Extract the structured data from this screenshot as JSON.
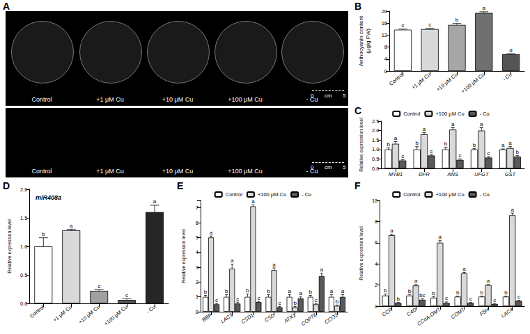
{
  "photo_panel": {
    "panel_label": "A",
    "rows": [
      {
        "labels": [
          "Control",
          "+1 μM Cu",
          "+10 μM Cu",
          "+100 μM Cu",
          "- Cu"
        ],
        "scale_bar": [
          "0",
          "cm",
          "5"
        ]
      },
      {
        "labels": [
          "Control",
          "+1 μM Cu",
          "+10 μM Cu",
          "+100 μM Cu",
          "- Cu"
        ],
        "scale_bar": [
          "0",
          "cm",
          "5"
        ]
      }
    ]
  },
  "chart_data": [
    {
      "type": "bar",
      "panel_label": "B",
      "y_label": "Anthocyanin content\n(μg/g FW)",
      "categories": [
        "Control",
        "+1 μM Cu",
        "+10 μM Cu",
        "+100 μM Cu",
        "- Cu"
      ],
      "values": [
        13.8,
        14.0,
        15.4,
        19.4,
        5.6
      ],
      "errors": [
        0.2,
        0.3,
        0.5,
        0.4,
        0.2
      ],
      "annotations": [
        "c",
        "c",
        "b",
        "a",
        "d"
      ],
      "colors": [
        "#ffffff",
        "#d9d9d9",
        "#a6a6a6",
        "#707070",
        "#555555"
      ],
      "ylim": [
        0,
        20
      ],
      "yticks": [
        0,
        4,
        8,
        12,
        16,
        20
      ],
      "grid": false
    },
    {
      "type": "bar",
      "panel_label": "C",
      "y_label": "Relative expression level",
      "categories": [
        "MYB1",
        "DFR",
        "ANS",
        "UFGT",
        "GST"
      ],
      "series": [
        {
          "name": "Control",
          "color": "#ffffff",
          "values": [
            1.0,
            1.0,
            1.0,
            1.0,
            1.0
          ],
          "errors": [
            0.08,
            0.15,
            0.12,
            0.04,
            0.03
          ],
          "annotations": [
            "b",
            "b",
            "b",
            "b",
            "a"
          ]
        },
        {
          "name": "+100 μM Cu",
          "color": "#d9d9d9",
          "values": [
            1.3,
            1.8,
            2.05,
            2.0,
            1.07
          ],
          "errors": [
            0.12,
            0.1,
            0.1,
            0.15,
            0.08
          ],
          "annotations": [
            "a",
            "a",
            "a",
            "a",
            "a"
          ]
        },
        {
          "name": "- Cu",
          "color": "#595959",
          "values": [
            0.42,
            0.68,
            0.45,
            0.57,
            0.62
          ],
          "errors": [
            0.05,
            0.05,
            0.05,
            0.05,
            0.05
          ],
          "annotations": [
            "c",
            "c",
            "c",
            "c",
            "b"
          ]
        }
      ],
      "ylim": [
        0,
        2.5
      ],
      "yticks": [
        {
          "value": 0,
          "label": "0.0"
        },
        0.5,
        {
          "value": 1,
          "label": "1.0"
        },
        1.5,
        {
          "value": 2,
          "label": "2.0"
        },
        2.5
      ],
      "legend": "top",
      "grid": false
    },
    {
      "type": "bar",
      "panel_label": "D",
      "title": "miR408a",
      "y_label": "Relative expression level",
      "categories": [
        "Control",
        "+1 μM Cu",
        "+10 μM Cu",
        "+100 μM Cu",
        "- Cu"
      ],
      "values": [
        1.0,
        1.28,
        0.22,
        0.06,
        1.6
      ],
      "errors": [
        0.15,
        0.02,
        0.02,
        0.02,
        0.12
      ],
      "annotations": [
        "b",
        "a",
        "c",
        "c",
        "a"
      ],
      "colors": [
        "#ffffff",
        "#d9d9d9",
        "#a0a0a0",
        "#595959",
        "#262626"
      ],
      "ylim": [
        0,
        2
      ],
      "yticks": [
        {
          "value": 0,
          "label": "0.0"
        },
        0.5,
        {
          "value": 1,
          "label": "1.0"
        },
        1.5,
        {
          "value": 2,
          "label": "2.0"
        }
      ],
      "grid": false
    },
    {
      "type": "bar",
      "panel_label": "E",
      "y_label": "Relative expression level",
      "categories": [
        "BBP",
        "LAC3",
        "CSD1",
        "CSD",
        "ATX1",
        "COPT6",
        "CCO2"
      ],
      "series": [
        {
          "name": "Control",
          "color": "#ffffff",
          "values": [
            1.0,
            1.0,
            1.0,
            1.0,
            1.0,
            1.0,
            1.0
          ],
          "errors": [
            0.1,
            0.15,
            0.2,
            0.15,
            0.15,
            0.1,
            0.15
          ],
          "annotations": [
            "b",
            "b",
            "b",
            "b",
            "a",
            "b",
            "a"
          ]
        },
        {
          "name": "+100 μM Cu",
          "color": "#d9d9d9",
          "values": [
            5.0,
            2.9,
            7.1,
            2.8,
            0.3,
            0.5,
            0.4
          ],
          "errors": [
            0.1,
            0.3,
            0.1,
            0.15,
            0.05,
            0.05,
            0.05
          ],
          "annotations": [
            "a",
            "a",
            "a",
            "a",
            "b",
            "c",
            "b"
          ]
        },
        {
          "name": "- Cu",
          "color": "#595959",
          "values": [
            0.5,
            0.55,
            0.65,
            0.3,
            0.9,
            2.4,
            1.0
          ],
          "errors": [
            0.05,
            0.1,
            0.05,
            0.05,
            0.1,
            0.2,
            0.15
          ],
          "annotations": [
            "c",
            "c",
            "c",
            "c",
            "a",
            "a",
            "a"
          ]
        }
      ],
      "ylim": [
        0,
        7.5
      ],
      "yticks": [
        0,
        1,
        2,
        3,
        4,
        5,
        6,
        7
      ],
      "legend": "top",
      "grid": false
    },
    {
      "type": "bar",
      "panel_label": "F",
      "y_label": "Relative expression level",
      "categories": [
        "CCR",
        "C4D",
        "CCoA-OMT",
        "COMT",
        "F5H",
        "LAC4"
      ],
      "series": [
        {
          "name": "Control",
          "color": "#ffffff",
          "values": [
            1.0,
            1.0,
            0.8,
            0.9,
            0.9,
            0.9
          ],
          "errors": [
            0.15,
            0.1,
            0.1,
            0.05,
            0.05,
            0.05
          ],
          "annotations": [
            "b",
            "b",
            "b",
            "b",
            "b",
            "b"
          ]
        },
        {
          "name": "+100 μM Cu",
          "color": "#d9d9d9",
          "values": [
            6.7,
            1.95,
            6.0,
            3.1,
            2.0,
            8.6
          ],
          "errors": [
            0.1,
            0.1,
            0.2,
            0.1,
            0.05,
            0.2
          ],
          "annotations": [
            "a",
            "a",
            "a",
            "a",
            "a",
            "a"
          ]
        },
        {
          "name": "- Cu",
          "color": "#595959",
          "values": [
            0.3,
            0.6,
            0.3,
            0.3,
            0.2,
            0.5
          ],
          "errors": [
            0.05,
            0.1,
            0.1,
            0.05,
            0.05,
            0.05
          ],
          "annotations": [
            "b",
            "bc",
            "c",
            "c",
            "c",
            "c"
          ]
        }
      ],
      "ylim": [
        0,
        10
      ],
      "yticks": [
        0,
        2,
        4,
        6,
        8,
        10
      ],
      "legend": "top",
      "grid": false
    }
  ]
}
